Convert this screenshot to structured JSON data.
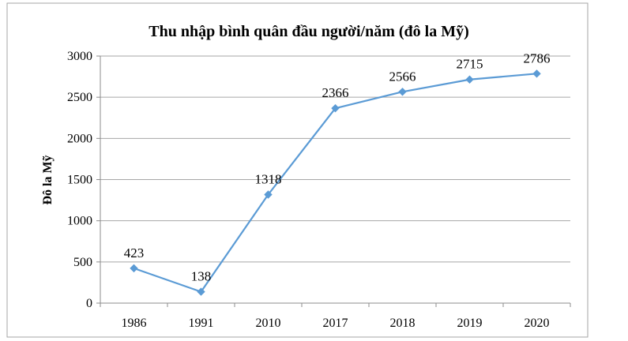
{
  "chart_data": {
    "type": "line",
    "title": "Thu nhập bình quân đầu người/năm (đô la Mỹ)",
    "xlabel": "",
    "ylabel": "Đô la  Mỹ",
    "categories": [
      "1986",
      "1991",
      "2010",
      "2017",
      "2018",
      "2019",
      "2020"
    ],
    "series": [
      {
        "values": [
          423,
          138,
          1318,
          2366,
          2566,
          2715,
          2786
        ]
      }
    ],
    "ylim": [
      0,
      3000
    ],
    "yticks": [
      0,
      500,
      1000,
      1500,
      2000,
      2500,
      3000
    ],
    "grid": true,
    "legend": "none",
    "data_labels": true,
    "colors": {
      "line": "#5b9bd5",
      "marker": "#5b9bd5",
      "grid": "#a6a6a6",
      "axis": "#8c8c8c",
      "frame": "#a6a6a6",
      "text": "#000000"
    }
  }
}
